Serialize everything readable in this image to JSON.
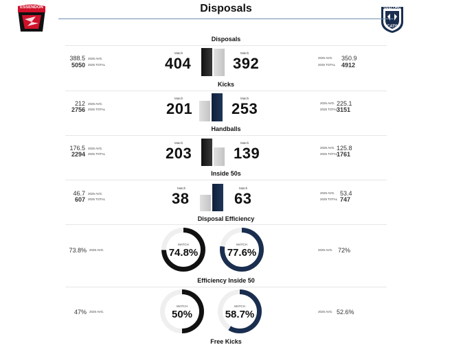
{
  "header": {
    "title": "Disposals",
    "home_logo_text": "ESSENDON",
    "away_logo_text": "GEELONG",
    "away_logo_sub": "CATS"
  },
  "labels": {
    "match": "Match",
    "match_upper": "MATCH",
    "avg": "2025 AVG.",
    "total": "2025 TOTAL"
  },
  "colors": {
    "home": "#111111",
    "away": "#1a2e4f",
    "loser_bar": "#d0d0d0",
    "rule": "#6b8cae"
  },
  "stats": [
    {
      "title": "Disposals",
      "home": {
        "match": "404",
        "avg": "388.5",
        "total": "5050"
      },
      "away": {
        "match": "392",
        "avg": "350.9",
        "total": "4912"
      }
    },
    {
      "title": "Kicks",
      "home": {
        "match": "201",
        "avg": "212",
        "total": "2756"
      },
      "away": {
        "match": "253",
        "avg": "225.1",
        "total": "3151"
      }
    },
    {
      "title": "Handballs",
      "home": {
        "match": "203",
        "avg": "176.5",
        "total": "2294"
      },
      "away": {
        "match": "139",
        "avg": "125.8",
        "total": "1761"
      }
    },
    {
      "title": "Inside 50s",
      "home": {
        "match": "38",
        "avg": "46.7",
        "total": "607"
      },
      "away": {
        "match": "63",
        "avg": "53.4",
        "total": "747"
      }
    }
  ],
  "pct_stats": [
    {
      "title": "Disposal Efficiency",
      "home": {
        "match": "74.8%",
        "avg": "73.8%",
        "fraction": 0.748
      },
      "away": {
        "match": "77.6%",
        "avg": "72%",
        "fraction": 0.776
      }
    },
    {
      "title": "Efficiency Inside 50",
      "home": {
        "match": "50%",
        "avg": "47%",
        "fraction": 0.5
      },
      "away": {
        "match": "58.7%",
        "avg": "52.6%",
        "fraction": 0.587
      }
    }
  ],
  "next_section": {
    "title": "Free Kicks"
  }
}
